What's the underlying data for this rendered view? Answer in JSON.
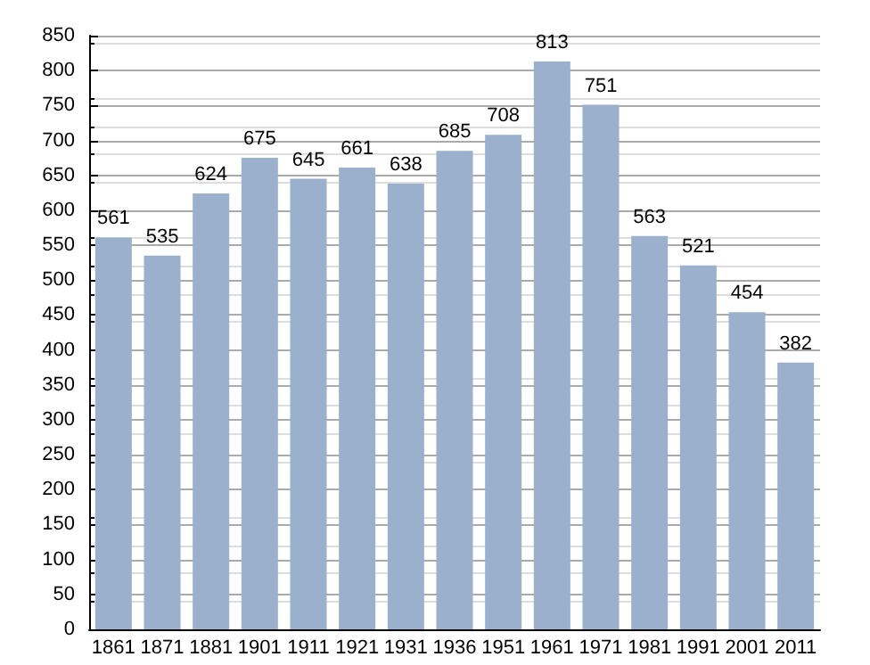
{
  "chart_data": {
    "type": "bar",
    "categories": [
      "1861",
      "1871",
      "1881",
      "1901",
      "1911",
      "1921",
      "1931",
      "1936",
      "1951",
      "1961",
      "1971",
      "1981",
      "1991",
      "2001",
      "2011"
    ],
    "values": [
      561,
      535,
      624,
      675,
      645,
      661,
      638,
      685,
      708,
      813,
      751,
      563,
      521,
      454,
      382
    ],
    "color": "#9ab0cc",
    "ylim": [
      0,
      850
    ],
    "yticks": [
      0,
      50,
      100,
      150,
      200,
      250,
      300,
      350,
      400,
      450,
      500,
      550,
      600,
      650,
      700,
      750,
      800,
      850
    ],
    "grid": "y",
    "data_labels": true
  }
}
